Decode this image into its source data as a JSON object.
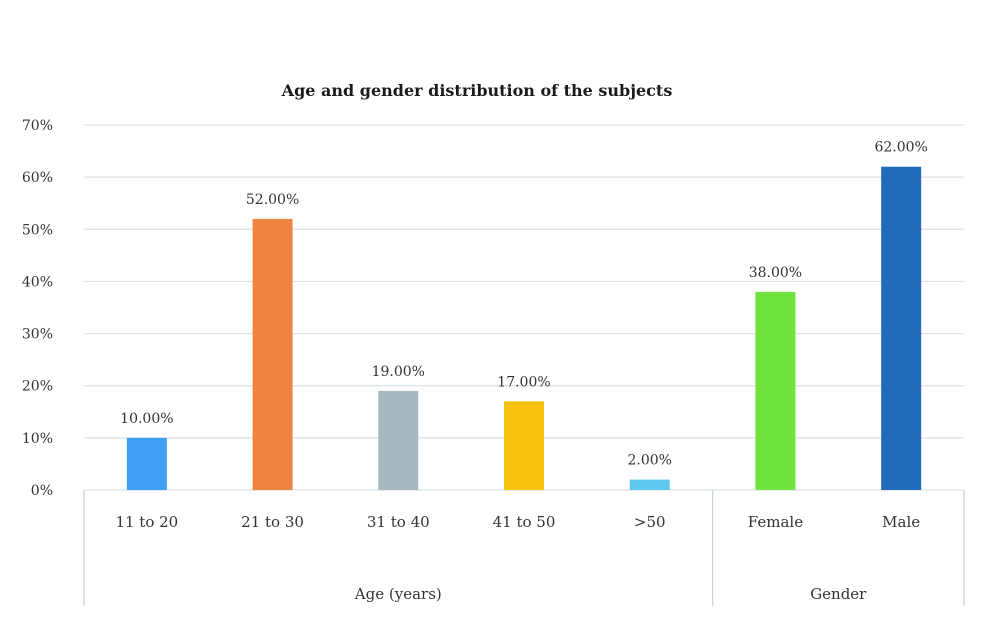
{
  "chart_data": {
    "type": "bar",
    "title": "Age and gender distribution of the subjects",
    "ylim": [
      0,
      70
    ],
    "yticks": [
      "0%",
      "10%",
      "20%",
      "30%",
      "40%",
      "50%",
      "60%",
      "70%"
    ],
    "grid": true,
    "groups": [
      {
        "label": "Age (years)",
        "categories": [
          "11 to 20",
          "21 to 30",
          "31 to 40",
          "41 to 50",
          ">50"
        ]
      },
      {
        "label": "Gender",
        "categories": [
          "Female",
          "Male"
        ]
      }
    ],
    "categories": [
      "11 to 20",
      "21 to 30",
      "31 to 40",
      "41 to 50",
      ">50",
      "Female",
      "Male"
    ],
    "values": [
      10,
      52,
      19,
      17,
      2,
      38,
      62
    ],
    "data_labels": [
      "10.00%",
      "52.00%",
      "19.00%",
      "17.00%",
      "2.00%",
      "38.00%",
      "62.00%"
    ],
    "colors": [
      "#3fa0f5",
      "#ee8442",
      "#a8b8c0",
      "#f6c20f",
      "#5ec8f3",
      "#6fe23e",
      "#226bbb"
    ]
  }
}
